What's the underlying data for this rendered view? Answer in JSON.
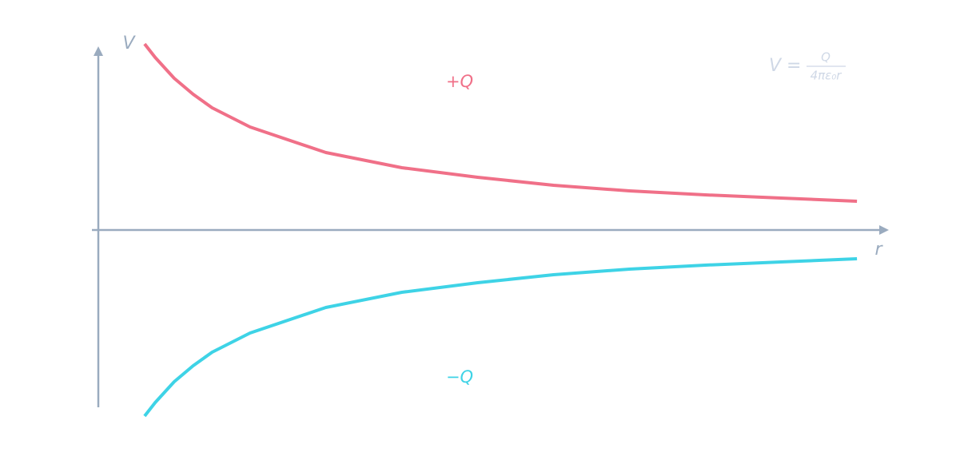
{
  "chart_data": {
    "type": "line",
    "x_label": "r",
    "y_label": "V",
    "formula": {
      "lhs": "V =",
      "numerator": "Q",
      "denominator": "4πε₀r"
    },
    "x": [
      0.61,
      0.75,
      1,
      1.25,
      1.5,
      2,
      3,
      4,
      5,
      6,
      7,
      8,
      9,
      10
    ],
    "series": [
      {
        "name": "+Q",
        "color": "#f07088",
        "values": [
          2.33,
          2.16,
          1.9,
          1.7,
          1.53,
          1.29,
          0.97,
          0.78,
          0.66,
          0.56,
          0.49,
          0.44,
          0.4,
          0.36
        ]
      },
      {
        "name": "−Q",
        "color": "#3ed3e6",
        "values": [
          -2.33,
          -2.16,
          -1.9,
          -1.7,
          -1.53,
          -1.29,
          -0.97,
          -0.78,
          -0.66,
          -0.56,
          -0.49,
          -0.44,
          -0.4,
          -0.36
        ]
      }
    ],
    "xlim": [
      0,
      10.42
    ],
    "ylim": [
      -2.22,
      2.3
    ],
    "axis_color": "#9aabbf"
  }
}
